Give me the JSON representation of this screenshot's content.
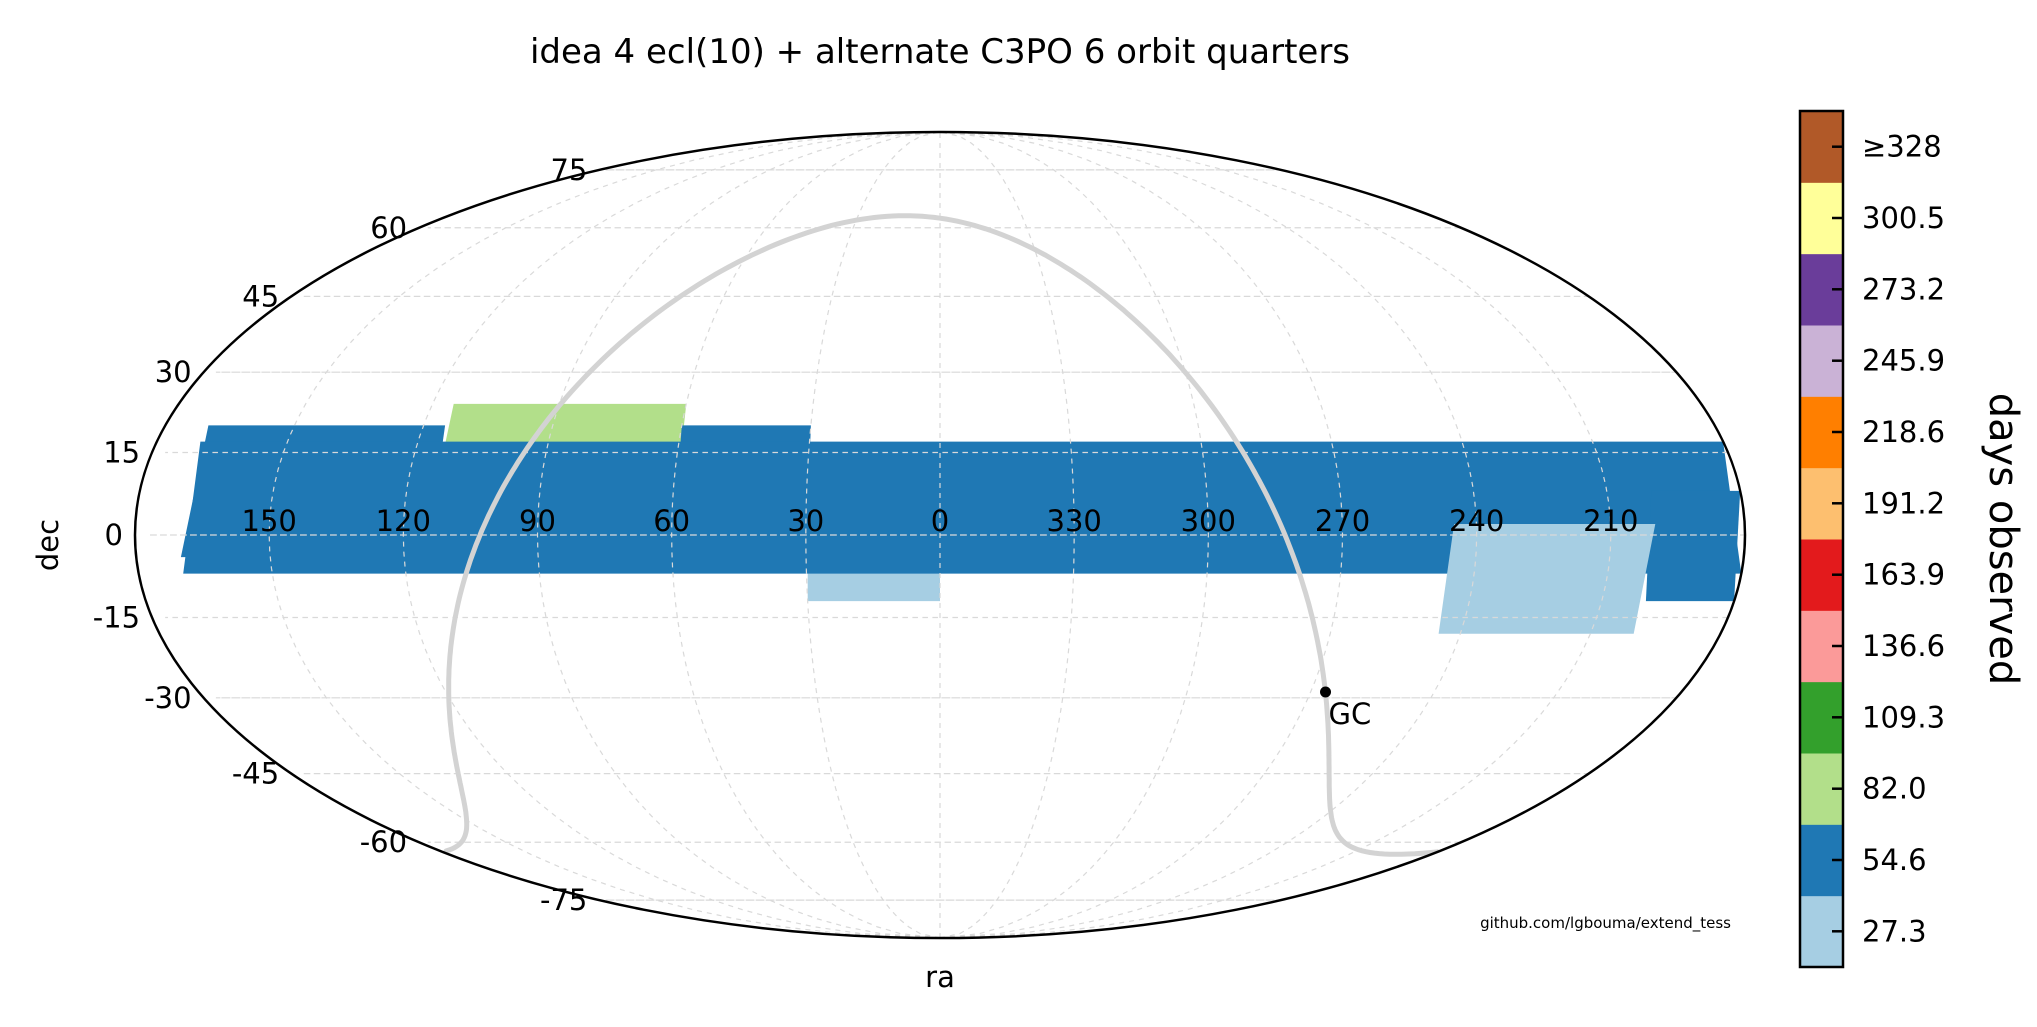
{
  "chart_data": {
    "type": "scatter",
    "projection": "mollweide",
    "title": "idea 4 ecl(10) + alternate C3PO 6 orbit quarters",
    "xlabel": "ra",
    "ylabel": "dec",
    "x_ticks": [
      "150",
      "120",
      "90",
      "60",
      "30",
      "0",
      "330",
      "300",
      "270",
      "240",
      "210"
    ],
    "y_ticks": [
      "75",
      "60",
      "45",
      "30",
      "15",
      "0",
      "-15",
      "-30",
      "-45",
      "-60",
      "-75"
    ],
    "grid": true,
    "colorbar": {
      "label": "days observed",
      "ticks": [
        "27.3",
        "54.6",
        "82.0",
        "109.3",
        "136.6",
        "163.9",
        "191.2",
        "218.6",
        "245.9",
        "273.2",
        "300.5",
        "≥328"
      ],
      "colors": [
        "#a6cee3",
        "#1f78b4",
        "#b2df8a",
        "#33a02c",
        "#fb9a99",
        "#e31a1c",
        "#fdbf6f",
        "#ff7f00",
        "#cab2d6",
        "#6a3d9a",
        "#ffff99",
        "#b15928"
      ]
    },
    "annotations": [
      {
        "text": "GC",
        "ra": 266.4,
        "dec": -28.9
      }
    ],
    "galactic_plane_color": "#d3d3d3",
    "credit": "github.com/lgbouma/extend_tess",
    "coverage_regions": [
      {
        "name": "ecliptic-band-west",
        "ra_range": [
          170,
          115
        ],
        "dec_center": 8,
        "half_width": 12,
        "level": "54.6"
      },
      {
        "name": "ecliptic-band-mid",
        "ra_range": [
          115,
          60
        ],
        "dec_center": 12,
        "half_width": 12,
        "level": "82.0"
      },
      {
        "name": "ecliptic-band-east",
        "ra_range": [
          60,
          30
        ],
        "dec_center": 8,
        "half_width": 12,
        "level": "54.6"
      },
      {
        "name": "ecliptic-band-tail",
        "ra_range": [
          30,
          0
        ],
        "dec_center": 0,
        "half_width": 12,
        "level": "27.3"
      },
      {
        "name": "band-west-edge",
        "ra_range": [
          180,
          170
        ],
        "dec_center": 5,
        "half_width": 12,
        "level": "54.6"
      },
      {
        "name": "band-east-edge",
        "ra_range": [
          200,
          180
        ],
        "dec_center": -2,
        "half_width": 10,
        "level": "54.6"
      },
      {
        "name": "east-field",
        "ra_range": [
          245,
          200
        ],
        "dec_center": -8,
        "half_width": 10,
        "level": "27.3"
      }
    ]
  }
}
